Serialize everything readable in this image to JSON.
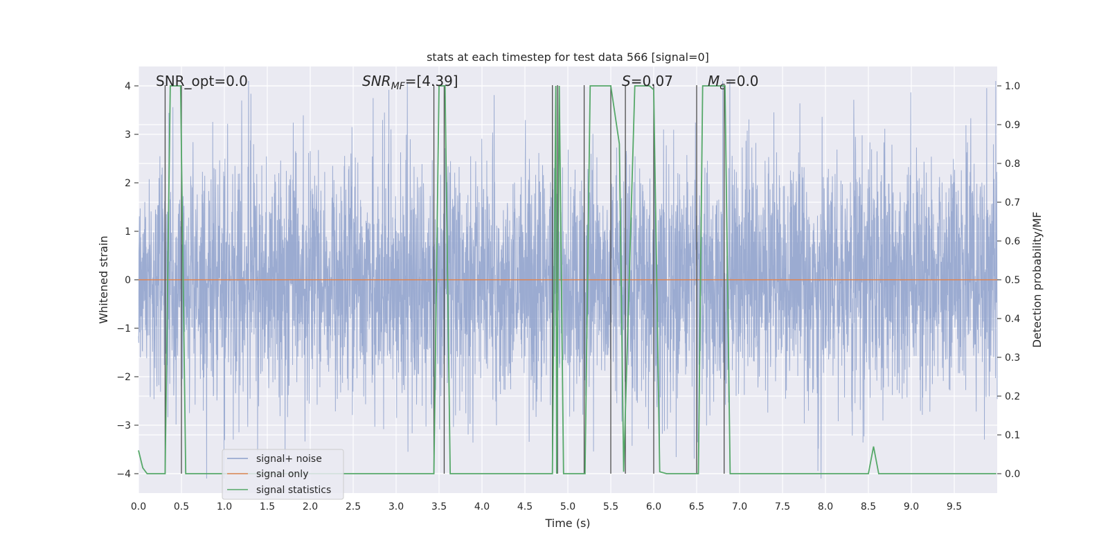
{
  "chart_data": {
    "type": "line",
    "title": "stats at each timestep for test data 566 [signal=0]",
    "xlabel": "Time (s)",
    "ylabel_left": "Whitened strain",
    "ylabel_right": "Detection probability/MF",
    "xlim": [
      0.0,
      10.0
    ],
    "ylim_left": [
      -4.4,
      4.4
    ],
    "ylim_right": [
      -0.05,
      1.05
    ],
    "x_ticks": [
      0.0,
      0.5,
      1.0,
      1.5,
      2.0,
      2.5,
      3.0,
      3.5,
      4.0,
      4.5,
      5.0,
      5.5,
      6.0,
      6.5,
      7.0,
      7.5,
      8.0,
      8.5,
      9.0,
      9.5
    ],
    "x_tick_labels": [
      "0.0",
      "0.5",
      "1.0",
      "1.5",
      "2.0",
      "2.5",
      "3.0",
      "3.5",
      "4.0",
      "4.5",
      "5.0",
      "5.5",
      "6.0",
      "6.5",
      "7.0",
      "7.5",
      "8.0",
      "8.5",
      "9.0",
      "9.5"
    ],
    "y_left_ticks": [
      4,
      3,
      2,
      1,
      0,
      -1,
      -2,
      -3,
      -4
    ],
    "y_left_tick_labels": [
      "4",
      "3",
      "2",
      "1",
      "0",
      "−1",
      "−2",
      "−3",
      "−4"
    ],
    "y_right_ticks": [
      1.0,
      0.9,
      0.8,
      0.7,
      0.6,
      0.5,
      0.4,
      0.3,
      0.2,
      0.1,
      0.0
    ],
    "y_right_tick_labels": [
      "1.0",
      "0.9",
      "0.8",
      "0.7",
      "0.6",
      "0.5",
      "0.4",
      "0.3",
      "0.2",
      "0.1",
      "0.0"
    ],
    "grid": true,
    "legend_location": "lower-left",
    "series": [
      {
        "name": "signal+ noise",
        "axis": "left",
        "color": "#8da0cb",
        "style": "dense whitened noise",
        "amplitude_std": 1.25,
        "x_range": [
          0.0,
          10.0
        ]
      },
      {
        "name": "signal only",
        "axis": "left",
        "color": "#dd8452",
        "x": [
          0.0,
          10.0
        ],
        "y": [
          0.0,
          0.0
        ]
      },
      {
        "name": "signal statistics",
        "axis": "right",
        "color": "#55a868",
        "x": [
          0.0,
          0.05,
          0.1,
          0.31,
          0.37,
          0.49,
          0.55,
          3.44,
          3.5,
          3.57,
          3.63,
          4.82,
          4.86,
          4.87,
          4.9,
          4.95,
          5.2,
          5.26,
          5.5,
          5.6,
          5.65,
          5.78,
          5.95,
          6.0,
          6.07,
          6.15,
          6.52,
          6.57,
          6.83,
          6.89,
          8.5,
          8.56,
          8.62,
          9.99
        ],
        "y": [
          0.06,
          0.015,
          0.0,
          0.0,
          1.0,
          1.0,
          0.0,
          0.0,
          1.0,
          1.0,
          0.0,
          0.0,
          1.0,
          0.0,
          1.0,
          0.0,
          0.0,
          1.0,
          1.0,
          0.85,
          0.005,
          1.0,
          1.0,
          0.99,
          0.005,
          0.0,
          0.0,
          1.0,
          1.0,
          0.0,
          0.0,
          0.07,
          0.0,
          0.0
        ]
      }
    ],
    "vlines": {
      "color": "#4c4c4c",
      "x": [
        0.31,
        0.5,
        3.44,
        3.56,
        4.82,
        4.88,
        5.19,
        5.5,
        5.67,
        6.0,
        6.5,
        6.82
      ]
    },
    "annotations": [
      {
        "text": "SNR_opt=0.0"
      },
      {
        "symbol": "SNR",
        "subscript": "MF",
        "text": "=[4.39]"
      },
      {
        "symbol": "S",
        "text": "=0.07"
      },
      {
        "symbol": "M",
        "subscript": "c",
        "text": "=0.0"
      }
    ],
    "legend": {
      "entries": [
        "signal+ noise",
        "signal only",
        "signal statistics"
      ]
    }
  }
}
